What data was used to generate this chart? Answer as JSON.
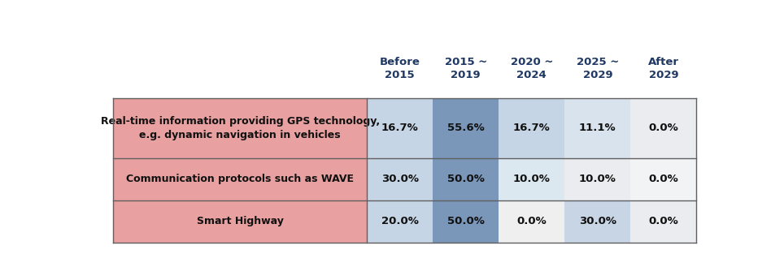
{
  "col_headers": [
    "Before\n2015",
    "2015 ~\n2019",
    "2020 ~\n2024",
    "2025 ~\n2029",
    "After\n2029"
  ],
  "row_labels": [
    "Real-time information providing GPS technology,\ne.g. dynamic navigation in vehicles",
    "Communication protocols such as WAVE",
    "Smart Highway"
  ],
  "values": [
    [
      "16.7%",
      "55.6%",
      "16.7%",
      "11.1%",
      "0.0%"
    ],
    [
      "30.0%",
      "50.0%",
      "10.0%",
      "10.0%",
      "0.0%"
    ],
    [
      "20.0%",
      "50.0%",
      "0.0%",
      "30.0%",
      "0.0%"
    ]
  ],
  "row_label_bg": "#E8A0A0",
  "col_colors_row0": [
    "#C5D5E5",
    "#7A96B8",
    "#C5D5E5",
    "#D8E3ED",
    "#EAECF0"
  ],
  "col_colors_row1": [
    "#C5D5E5",
    "#7A96B8",
    "#DCE8F0",
    "#EAECF0",
    "#F2F3F5"
  ],
  "col_colors_row2": [
    "#C5D5E5",
    "#7A96B8",
    "#F0EFEF",
    "#C8D5E5",
    "#EAECF0"
  ],
  "header_color": "#1F3864",
  "text_color": "#111111",
  "border_color": "#606060",
  "background_color": "#ffffff",
  "fig_width": 9.64,
  "fig_height": 3.45,
  "header_fontsize": 9.5,
  "cell_fontsize": 9.5,
  "label_fontsize": 9.0
}
